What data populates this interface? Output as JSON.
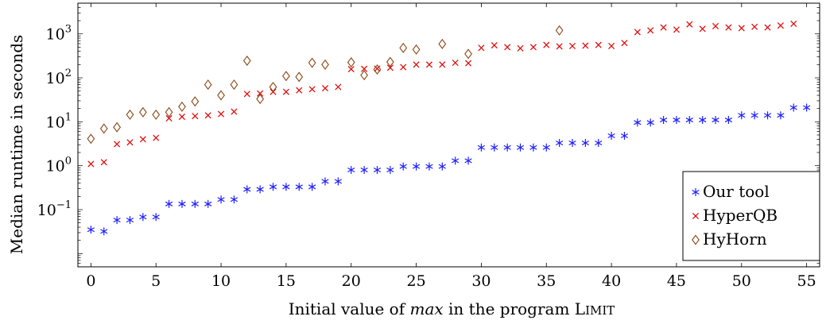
{
  "chart_data": {
    "type": "scatter",
    "title": "",
    "xlabel": {
      "before": "Initial value of ",
      "italic": "max",
      "middle": " in the program ",
      "smallcaps_first": "L",
      "smallcaps_rest": "IMIT"
    },
    "ylabel": "Median runtime in seconds",
    "x_scale": "linear",
    "y_scale": "log",
    "xlim": [
      -1,
      56
    ],
    "ylim": [
      0.005,
      5000
    ],
    "x_ticks": [
      0,
      5,
      10,
      15,
      20,
      25,
      30,
      35,
      40,
      45,
      50,
      55
    ],
    "x_tick_labels": [
      "0",
      "5",
      "10",
      "15",
      "20",
      "25",
      "30",
      "35",
      "40",
      "45",
      "50",
      "55"
    ],
    "y_ticks": [
      0.1,
      1,
      10,
      100,
      1000
    ],
    "y_tick_labels": [
      {
        "base": "10",
        "exp": "−1"
      },
      {
        "base": "10",
        "exp": "0"
      },
      {
        "base": "10",
        "exp": "1"
      },
      {
        "base": "10",
        "exp": "2"
      },
      {
        "base": "10",
        "exp": "3"
      }
    ],
    "grid": false,
    "legend_position": "bottom-right",
    "series": [
      {
        "name": "Our tool",
        "marker": "asterisk",
        "color": "#1f1fff",
        "points": [
          [
            0,
            0.035
          ],
          [
            1,
            0.032
          ],
          [
            2,
            0.058
          ],
          [
            3,
            0.058
          ],
          [
            4,
            0.068
          ],
          [
            5,
            0.068
          ],
          [
            6,
            0.135
          ],
          [
            7,
            0.135
          ],
          [
            8,
            0.135
          ],
          [
            9,
            0.135
          ],
          [
            10,
            0.17
          ],
          [
            11,
            0.17
          ],
          [
            12,
            0.29
          ],
          [
            13,
            0.29
          ],
          [
            14,
            0.33
          ],
          [
            15,
            0.33
          ],
          [
            16,
            0.33
          ],
          [
            17,
            0.33
          ],
          [
            18,
            0.44
          ],
          [
            19,
            0.44
          ],
          [
            20,
            0.8
          ],
          [
            21,
            0.8
          ],
          [
            22,
            0.8
          ],
          [
            23,
            0.8
          ],
          [
            24,
            0.96
          ],
          [
            25,
            0.96
          ],
          [
            26,
            0.96
          ],
          [
            27,
            0.96
          ],
          [
            28,
            1.3
          ],
          [
            29,
            1.3
          ],
          [
            30,
            2.6
          ],
          [
            31,
            2.6
          ],
          [
            32,
            2.6
          ],
          [
            33,
            2.6
          ],
          [
            34,
            2.6
          ],
          [
            35,
            2.6
          ],
          [
            36,
            3.3
          ],
          [
            37,
            3.3
          ],
          [
            38,
            3.3
          ],
          [
            39,
            3.3
          ],
          [
            40,
            4.8
          ],
          [
            41,
            4.8
          ],
          [
            42,
            9.6
          ],
          [
            43,
            9.6
          ],
          [
            44,
            11
          ],
          [
            45,
            11
          ],
          [
            46,
            11
          ],
          [
            47,
            11
          ],
          [
            48,
            11
          ],
          [
            49,
            11
          ],
          [
            50,
            14
          ],
          [
            51,
            14
          ],
          [
            52,
            14
          ],
          [
            53,
            14
          ],
          [
            54,
            21
          ],
          [
            55,
            21
          ]
        ]
      },
      {
        "name": "HyperQB",
        "marker": "x",
        "color": "#e01010",
        "points": [
          [
            0,
            1.1
          ],
          [
            1,
            1.2
          ],
          [
            2,
            3.1
          ],
          [
            3,
            3.4
          ],
          [
            4,
            4.0
          ],
          [
            5,
            4.3
          ],
          [
            6,
            12
          ],
          [
            7,
            13
          ],
          [
            8,
            13.5
          ],
          [
            9,
            14
          ],
          [
            10,
            15
          ],
          [
            11,
            17
          ],
          [
            12,
            43
          ],
          [
            13,
            44
          ],
          [
            14,
            48
          ],
          [
            15,
            48
          ],
          [
            16,
            52
          ],
          [
            17,
            55
          ],
          [
            18,
            58
          ],
          [
            19,
            62
          ],
          [
            20,
            158
          ],
          [
            21,
            160
          ],
          [
            22,
            162
          ],
          [
            23,
            170
          ],
          [
            24,
            175
          ],
          [
            25,
            200
          ],
          [
            26,
            200
          ],
          [
            27,
            200
          ],
          [
            28,
            220
          ],
          [
            29,
            215
          ],
          [
            30,
            480
          ],
          [
            31,
            550
          ],
          [
            32,
            500
          ],
          [
            33,
            470
          ],
          [
            34,
            500
          ],
          [
            35,
            560
          ],
          [
            36,
            520
          ],
          [
            37,
            530
          ],
          [
            38,
            540
          ],
          [
            39,
            560
          ],
          [
            40,
            530
          ],
          [
            41,
            620
          ],
          [
            42,
            1100
          ],
          [
            43,
            1200
          ],
          [
            44,
            1400
          ],
          [
            45,
            1250
          ],
          [
            46,
            1650
          ],
          [
            47,
            1300
          ],
          [
            48,
            1500
          ],
          [
            49,
            1400
          ],
          [
            50,
            1350
          ],
          [
            51,
            1450
          ],
          [
            52,
            1400
          ],
          [
            53,
            1550
          ],
          [
            54,
            1700
          ]
        ]
      },
      {
        "name": "HyHorn",
        "marker": "diamond",
        "color": "#8b4513",
        "points": [
          [
            0,
            4.1
          ],
          [
            1,
            7.0
          ],
          [
            2,
            7.5
          ],
          [
            3,
            14.5
          ],
          [
            4,
            16.5
          ],
          [
            5,
            14.5
          ],
          [
            6,
            16.5
          ],
          [
            7,
            22
          ],
          [
            8,
            29
          ],
          [
            9,
            70
          ],
          [
            10,
            40
          ],
          [
            11,
            70
          ],
          [
            12,
            245
          ],
          [
            13,
            33
          ],
          [
            14,
            62
          ],
          [
            15,
            110
          ],
          [
            16,
            105
          ],
          [
            17,
            220
          ],
          [
            18,
            200
          ],
          [
            20,
            225
          ],
          [
            21,
            115
          ],
          [
            22,
            155
          ],
          [
            23,
            230
          ],
          [
            24,
            480
          ],
          [
            25,
            440
          ],
          [
            27,
            590
          ],
          [
            29,
            350
          ],
          [
            36,
            1200
          ]
        ]
      }
    ]
  }
}
